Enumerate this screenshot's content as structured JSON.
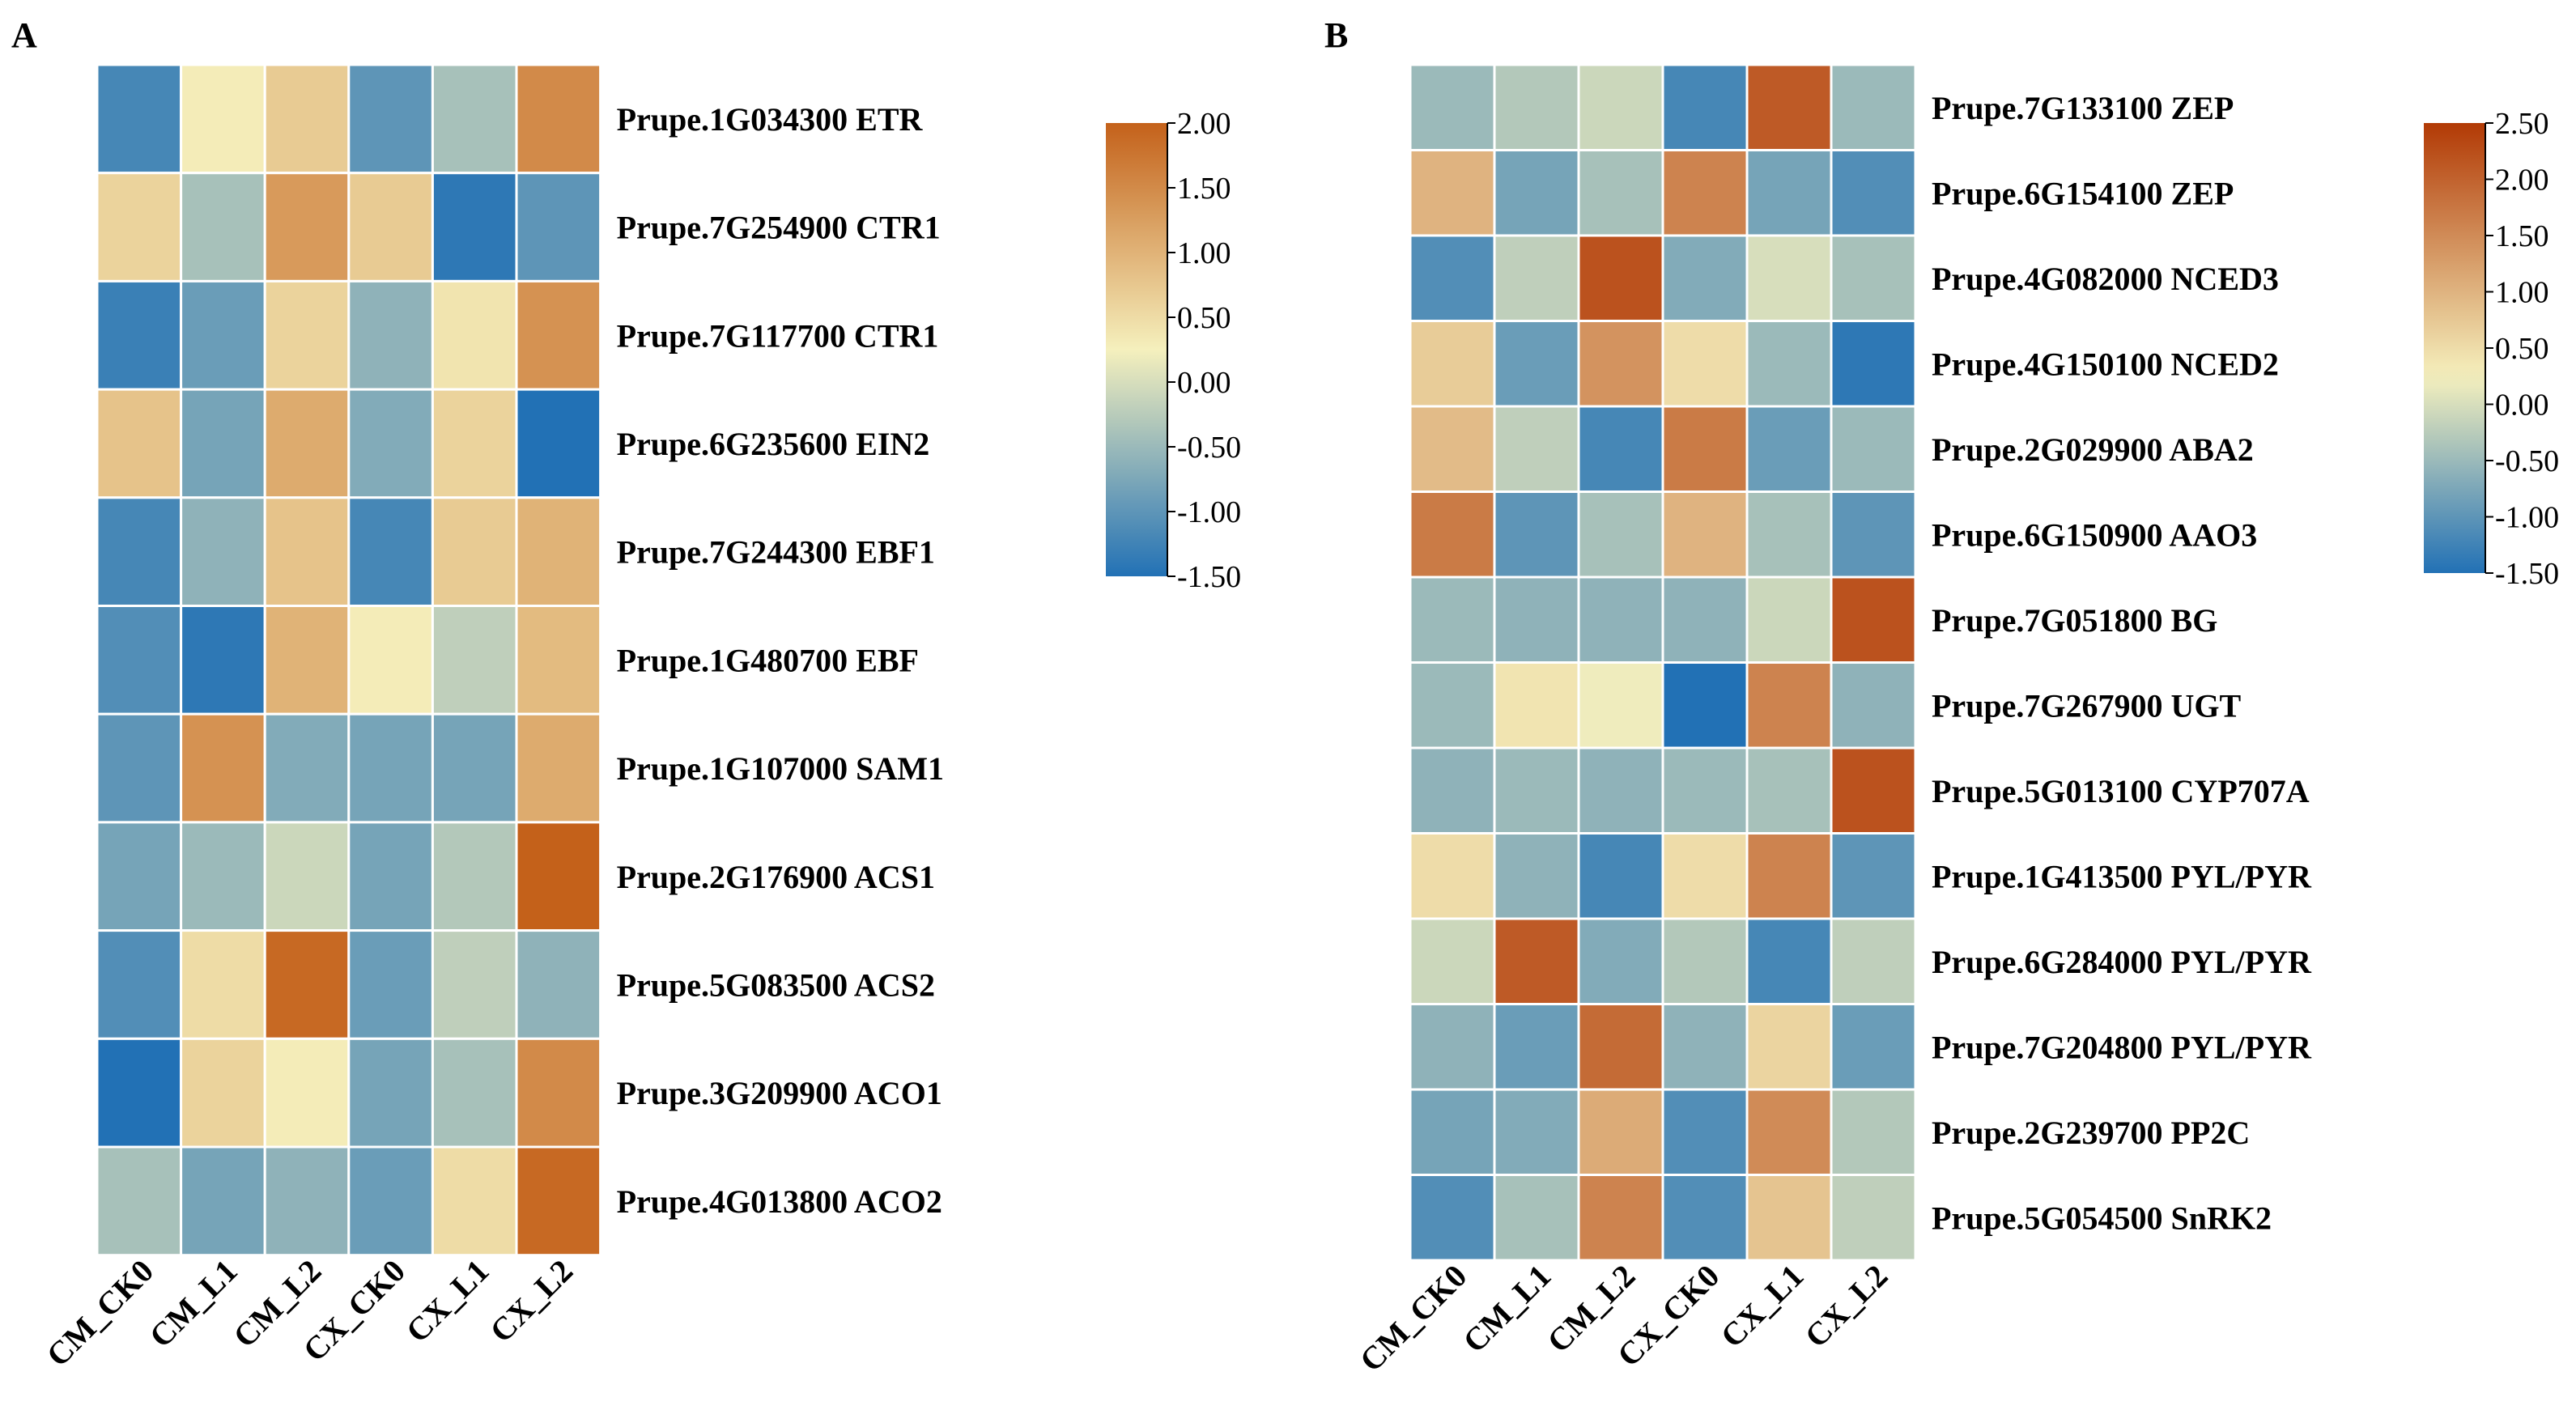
{
  "chart_data": [
    {
      "type": "heatmap",
      "panel": "A",
      "columns": [
        "CM_CK0",
        "CM_L1",
        "CM_L2",
        "CX_CK0",
        "CX_L1",
        "CX_L2"
      ],
      "rows": [
        "Prupe.1G034300 ETR",
        "Prupe.7G254900 CTR1",
        "Prupe.7G117700 CTR1",
        "Prupe.6G235600 EIN2",
        "Prupe.7G244300 EBF1",
        "Prupe.1G480700 EBF",
        "Prupe.1G107000 SAM1",
        "Prupe.2G176900 ACS1",
        "Prupe.5G083500 ACS2",
        "Prupe.3G209900 ACO1",
        "Prupe.4G013800 ACO2"
      ],
      "values": [
        [
          -1.2,
          0.3,
          0.7,
          -1.0,
          -0.4,
          1.5
        ],
        [
          0.6,
          -0.4,
          1.3,
          0.7,
          -1.4,
          -1.0
        ],
        [
          -1.3,
          -0.9,
          0.6,
          -0.6,
          0.4,
          1.4
        ],
        [
          0.8,
          -0.8,
          1.1,
          -0.7,
          0.6,
          -1.5
        ],
        [
          -1.2,
          -0.6,
          0.8,
          -1.2,
          0.7,
          1.0
        ],
        [
          -1.1,
          -1.4,
          1.0,
          0.3,
          -0.2,
          0.9
        ],
        [
          -1.0,
          1.4,
          -0.7,
          -0.8,
          -0.8,
          1.1
        ],
        [
          -0.8,
          -0.5,
          -0.1,
          -0.8,
          -0.3,
          2.0
        ],
        [
          -1.1,
          0.5,
          1.9,
          -0.9,
          -0.2,
          -0.6
        ],
        [
          -1.5,
          0.6,
          0.3,
          -0.8,
          -0.4,
          1.5
        ],
        [
          -0.4,
          -0.8,
          -0.6,
          -0.9,
          0.5,
          1.9
        ]
      ],
      "scale": {
        "min": -1.5,
        "max": 2.0,
        "ticks": [
          "2.00",
          "1.50",
          "1.00",
          "0.50",
          "0.00",
          "-0.50",
          "-1.00",
          "-1.50"
        ]
      },
      "colors": {
        "low": "#2271b5",
        "mid": "#f5f0bd",
        "high": "#c4611a"
      }
    },
    {
      "type": "heatmap",
      "panel": "B",
      "columns": [
        "CM_CK0",
        "CM_L1",
        "CM_L2",
        "CX_CK0",
        "CX_L1",
        "CX_L2"
      ],
      "rows": [
        "Prupe.7G133100 ZEP",
        "Prupe.6G154100 ZEP",
        "Prupe.4G082000 NCED3",
        "Prupe.4G150100 NCED2",
        "Prupe.2G029900 ABA2",
        "Prupe.6G150900 AAO3",
        "Prupe.7G051800 BG",
        "Prupe.7G267900 UGT",
        "Prupe.5G013100 CYP707A",
        "Prupe.1G413500 PYL/PYR",
        "Prupe.6G284000 PYL/PYR",
        "Prupe.7G204800 PYL/PYR",
        "Prupe.2G239700 PP2C",
        "Prupe.5G054500 SnRK2"
      ],
      "values": [
        [
          -0.5,
          -0.3,
          -0.1,
          -1.2,
          2.1,
          -0.5
        ],
        [
          1.0,
          -0.8,
          -0.4,
          1.6,
          -0.8,
          -1.1
        ],
        [
          -1.1,
          -0.2,
          2.2,
          -0.7,
          0.0,
          -0.4
        ],
        [
          0.7,
          -0.9,
          1.4,
          0.5,
          -0.5,
          -1.4
        ],
        [
          0.9,
          -0.2,
          -1.2,
          1.7,
          -0.9,
          -0.5
        ],
        [
          1.7,
          -1.0,
          -0.4,
          1.0,
          -0.4,
          -1.0
        ],
        [
          -0.5,
          -0.6,
          -0.6,
          -0.6,
          -0.1,
          2.2
        ],
        [
          -0.5,
          0.4,
          0.2,
          -1.5,
          1.6,
          -0.6
        ],
        [
          -0.6,
          -0.5,
          -0.6,
          -0.5,
          -0.4,
          2.2
        ],
        [
          0.5,
          -0.6,
          -1.2,
          0.5,
          1.6,
          -1.0
        ],
        [
          -0.1,
          2.1,
          -0.7,
          -0.3,
          -1.2,
          -0.2
        ],
        [
          -0.6,
          -0.9,
          1.9,
          -0.6,
          0.6,
          -0.9
        ],
        [
          -0.8,
          -0.7,
          1.1,
          -1.1,
          1.5,
          -0.3
        ],
        [
          -1.1,
          -0.4,
          1.6,
          -1.1,
          0.8,
          -0.2
        ]
      ],
      "scale": {
        "min": -1.5,
        "max": 2.5,
        "ticks": [
          "2.50",
          "2.00",
          "1.50",
          "1.00",
          "0.50",
          "0.00",
          "-0.50",
          "-1.00",
          "-1.50"
        ]
      },
      "colors": {
        "low": "#2271b5",
        "mid": "#f5f0bd",
        "high": "#b23a05"
      }
    }
  ]
}
